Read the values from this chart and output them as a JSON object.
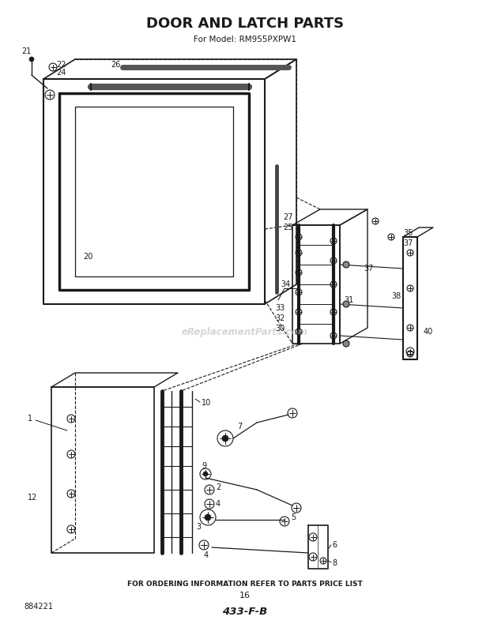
{
  "title": "DOOR AND LATCH PARTS",
  "subtitle": "For Model: RM955PXPW1",
  "footer_text": "FOR ORDERING INFORMATION REFER TO PARTS PRICE LIST",
  "footer_num": "16",
  "bottom_code": "433-F-B",
  "bottom_left": "884221",
  "bg_color": "#ffffff",
  "line_color": "#1a1a1a",
  "watermark": "eReplacementParts.com"
}
